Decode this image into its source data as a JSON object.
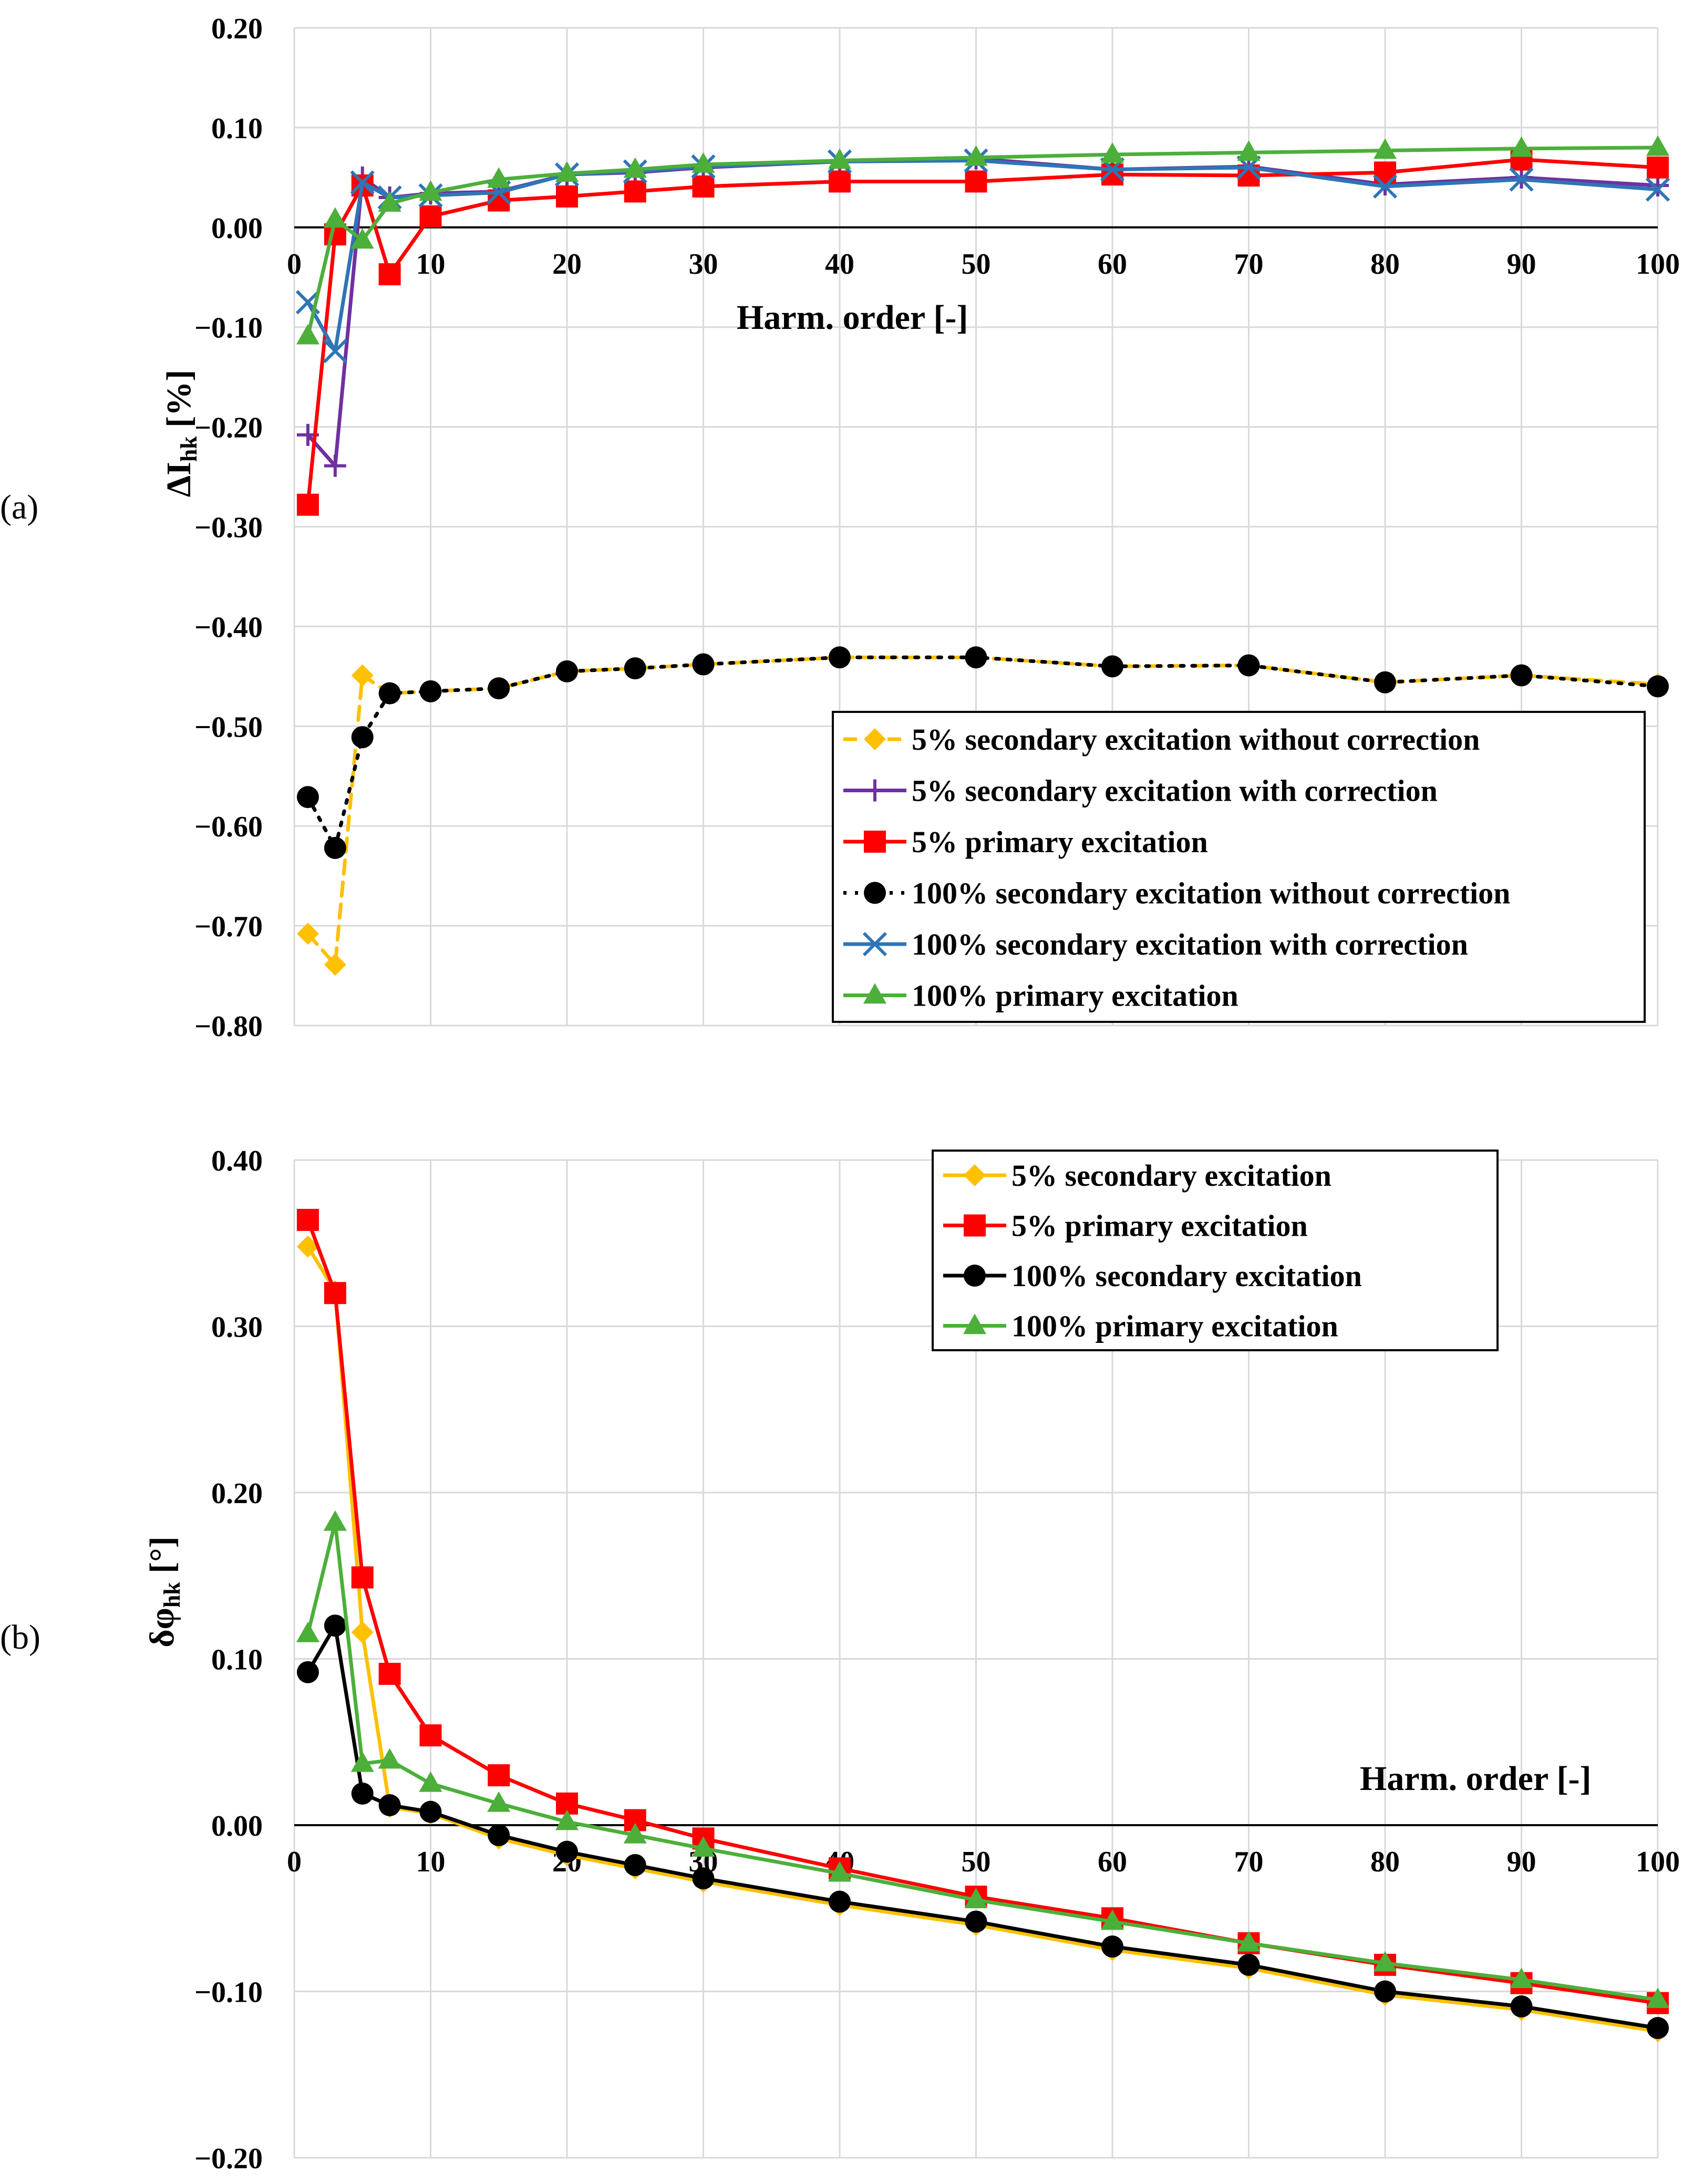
{
  "chart_data": [
    {
      "type": "line",
      "panel_label": "(a)",
      "ylabel": "ΔI",
      "ylabel_sub": "hk",
      "ylabel_unit": " [%]",
      "xlabel": "Harm. order [-]",
      "x": [
        1,
        3,
        5,
        7,
        10,
        15,
        20,
        25,
        30,
        40,
        50,
        60,
        70,
        80,
        90,
        100
      ],
      "xlim": [
        0,
        100
      ],
      "ylim": [
        -0.8,
        0.2
      ],
      "xticks": [
        0,
        10,
        20,
        30,
        40,
        50,
        60,
        70,
        80,
        90,
        100
      ],
      "yticks": [
        0.2,
        0.1,
        0.0,
        -0.1,
        -0.2,
        -0.3,
        -0.4,
        -0.5,
        -0.6,
        -0.7,
        -0.8
      ],
      "ytick_labels": [
        "0.20",
        "0.10",
        "0.00",
        "−0.10",
        "−0.20",
        "−0.30",
        "−0.40",
        "−0.50",
        "−0.60",
        "−0.70",
        "−0.80"
      ],
      "grid": true,
      "legend_position": "bottom-right",
      "series": [
        {
          "name": "5% secondary excitation without correction",
          "color": "#FFC000",
          "marker": "diamond",
          "dash": "dashed",
          "values": [
            -0.708,
            -0.739,
            -0.449,
            -0.467,
            -0.465,
            -0.462,
            -0.445,
            -0.442,
            -0.438,
            -0.431,
            -0.431,
            -0.44,
            -0.439,
            -0.456,
            -0.449,
            -0.458
          ]
        },
        {
          "name": "5% secondary excitation with correction",
          "color": "#7030A0",
          "marker": "plus",
          "dash": "solid",
          "values": [
            -0.208,
            -0.239,
            0.05,
            0.03,
            0.034,
            0.036,
            0.053,
            0.055,
            0.06,
            0.066,
            0.069,
            0.058,
            0.061,
            0.043,
            0.05,
            0.042
          ]
        },
        {
          "name": "5% primary excitation",
          "color": "#FF0000",
          "marker": "square",
          "dash": "solid",
          "values": [
            -0.278,
            -0.007,
            0.042,
            -0.047,
            0.011,
            0.027,
            0.031,
            0.036,
            0.041,
            0.046,
            0.046,
            0.053,
            0.052,
            0.055,
            0.068,
            0.06
          ]
        },
        {
          "name": "100% secondary excitation without correction",
          "color": "#000000",
          "marker": "circle",
          "dash": "dotted",
          "values": [
            -0.571,
            -0.622,
            -0.511,
            -0.467,
            -0.465,
            -0.462,
            -0.445,
            -0.442,
            -0.438,
            -0.431,
            -0.431,
            -0.44,
            -0.439,
            -0.456,
            -0.449,
            -0.46
          ]
        },
        {
          "name": "100% secondary excitation with correction",
          "color": "#2E75B6",
          "marker": "x",
          "dash": "solid",
          "values": [
            -0.075,
            -0.124,
            0.045,
            0.03,
            0.032,
            0.035,
            0.053,
            0.056,
            0.061,
            0.066,
            0.067,
            0.058,
            0.06,
            0.041,
            0.048,
            0.038
          ]
        },
        {
          "name": "100% primary excitation",
          "color": "#4CAF3A",
          "marker": "triangle",
          "dash": "solid",
          "values": [
            -0.109,
            0.008,
            -0.013,
            0.024,
            0.035,
            0.048,
            0.054,
            0.058,
            0.063,
            0.067,
            0.07,
            0.073,
            0.075,
            0.077,
            0.079,
            0.08
          ]
        }
      ]
    },
    {
      "type": "line",
      "panel_label": "(b)",
      "ylabel": "δφ",
      "ylabel_sub": "hk",
      "ylabel_unit": " [°]",
      "xlabel": "Harm. order [-]",
      "x": [
        1,
        3,
        5,
        7,
        10,
        15,
        20,
        25,
        30,
        40,
        50,
        60,
        70,
        80,
        90,
        100
      ],
      "xlim": [
        0,
        100
      ],
      "ylim": [
        -0.2,
        0.4
      ],
      "xticks": [
        0,
        10,
        20,
        30,
        40,
        50,
        60,
        70,
        80,
        90,
        100
      ],
      "yticks": [
        0.4,
        0.3,
        0.2,
        0.1,
        0.0,
        -0.1,
        -0.2
      ],
      "ytick_labels": [
        "0.40",
        "0.30",
        "0.20",
        "0.10",
        "0.00",
        "−0.10",
        "−0.20"
      ],
      "grid": true,
      "legend_position": "top-right",
      "series": [
        {
          "name": "5% secondary excitation",
          "color": "#FFC000",
          "marker": "diamond",
          "dash": "solid",
          "values": [
            0.348,
            0.321,
            0.116,
            0.011,
            0.007,
            -0.008,
            -0.018,
            -0.026,
            -0.034,
            -0.048,
            -0.06,
            -0.075,
            -0.086,
            -0.102,
            -0.111,
            -0.124
          ]
        },
        {
          "name": "5% primary excitation",
          "color": "#FF0000",
          "marker": "square",
          "dash": "solid",
          "values": [
            0.364,
            0.32,
            0.149,
            0.091,
            0.054,
            0.03,
            0.013,
            0.003,
            -0.008,
            -0.026,
            -0.043,
            -0.056,
            -0.071,
            -0.084,
            -0.095,
            -0.107
          ]
        },
        {
          "name": "100% secondary excitation",
          "color": "#000000",
          "marker": "circle",
          "dash": "solid",
          "values": [
            0.092,
            0.12,
            0.019,
            0.012,
            0.008,
            -0.006,
            -0.016,
            -0.024,
            -0.032,
            -0.046,
            -0.058,
            -0.073,
            -0.084,
            -0.1,
            -0.109,
            -0.122
          ]
        },
        {
          "name": "100% primary excitation",
          "color": "#4CAF3A",
          "marker": "triangle",
          "dash": "solid",
          "values": [
            0.115,
            0.182,
            0.037,
            0.039,
            0.025,
            0.013,
            0.002,
            -0.006,
            -0.014,
            -0.029,
            -0.045,
            -0.058,
            -0.071,
            -0.083,
            -0.093,
            -0.105
          ]
        }
      ]
    }
  ]
}
